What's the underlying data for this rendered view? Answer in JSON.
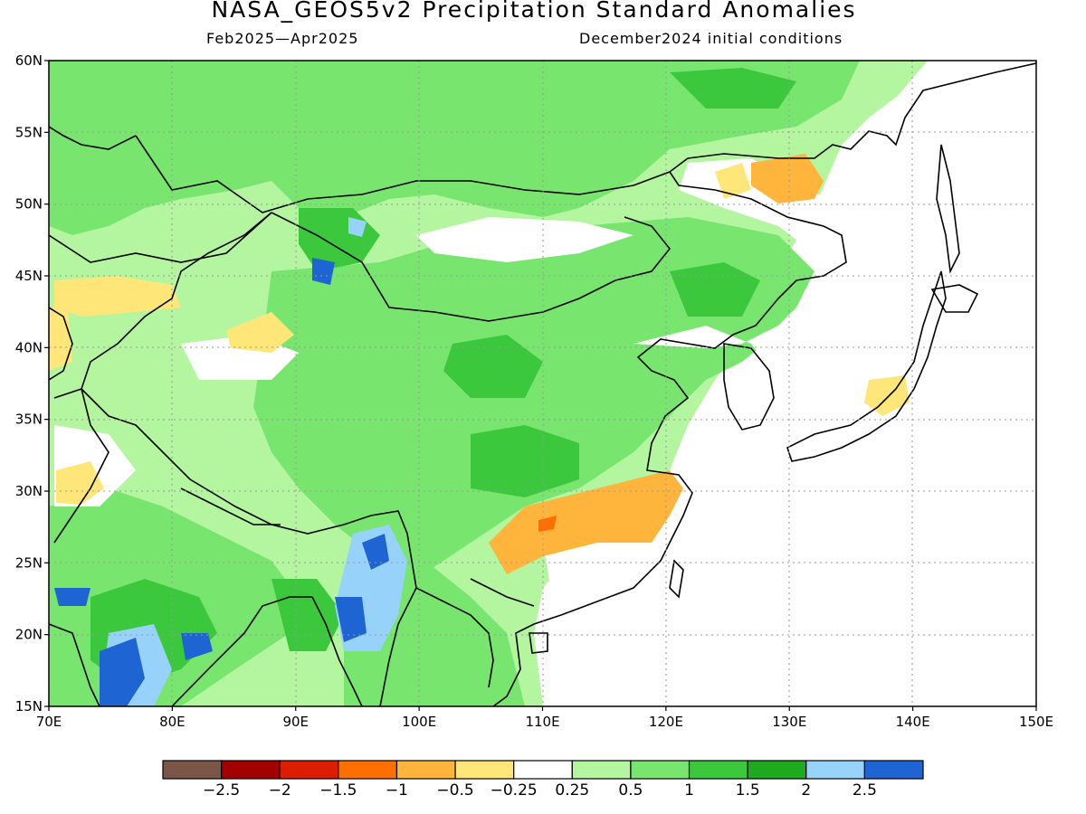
{
  "title": "NASA_GEOS5v2 Precipitation Standard Anomalies",
  "subtitle_left": "Feb2025—Apr2025",
  "subtitle_right": "December2024 initial conditions",
  "map": {
    "lon_range": [
      70,
      150
    ],
    "lat_range": [
      15,
      60
    ],
    "lon_ticks": [
      "70E",
      "80E",
      "90E",
      "100E",
      "110E",
      "120E",
      "130E",
      "140E",
      "150E"
    ],
    "lat_ticks": [
      "15N",
      "20N",
      "25N",
      "30N",
      "35N",
      "40N",
      "45N",
      "50N",
      "55N",
      "60N"
    ],
    "gridlines": true
  },
  "colorbar": {
    "colors": [
      "#7b5548",
      "#a50000",
      "#dc1e00",
      "#ff6e00",
      "#ffb43c",
      "#ffe678",
      "#ffffff",
      "#b4f5a0",
      "#78e66e",
      "#3cc83c",
      "#1eaa1e",
      "#96d2fa",
      "#1e64d2"
    ],
    "labels": [
      "−2.5",
      "−2",
      "−1.5",
      "−1",
      "−0.5",
      "−0.25",
      "0.25",
      "0.5",
      "1",
      "1.5",
      "2",
      "2.5"
    ]
  }
}
